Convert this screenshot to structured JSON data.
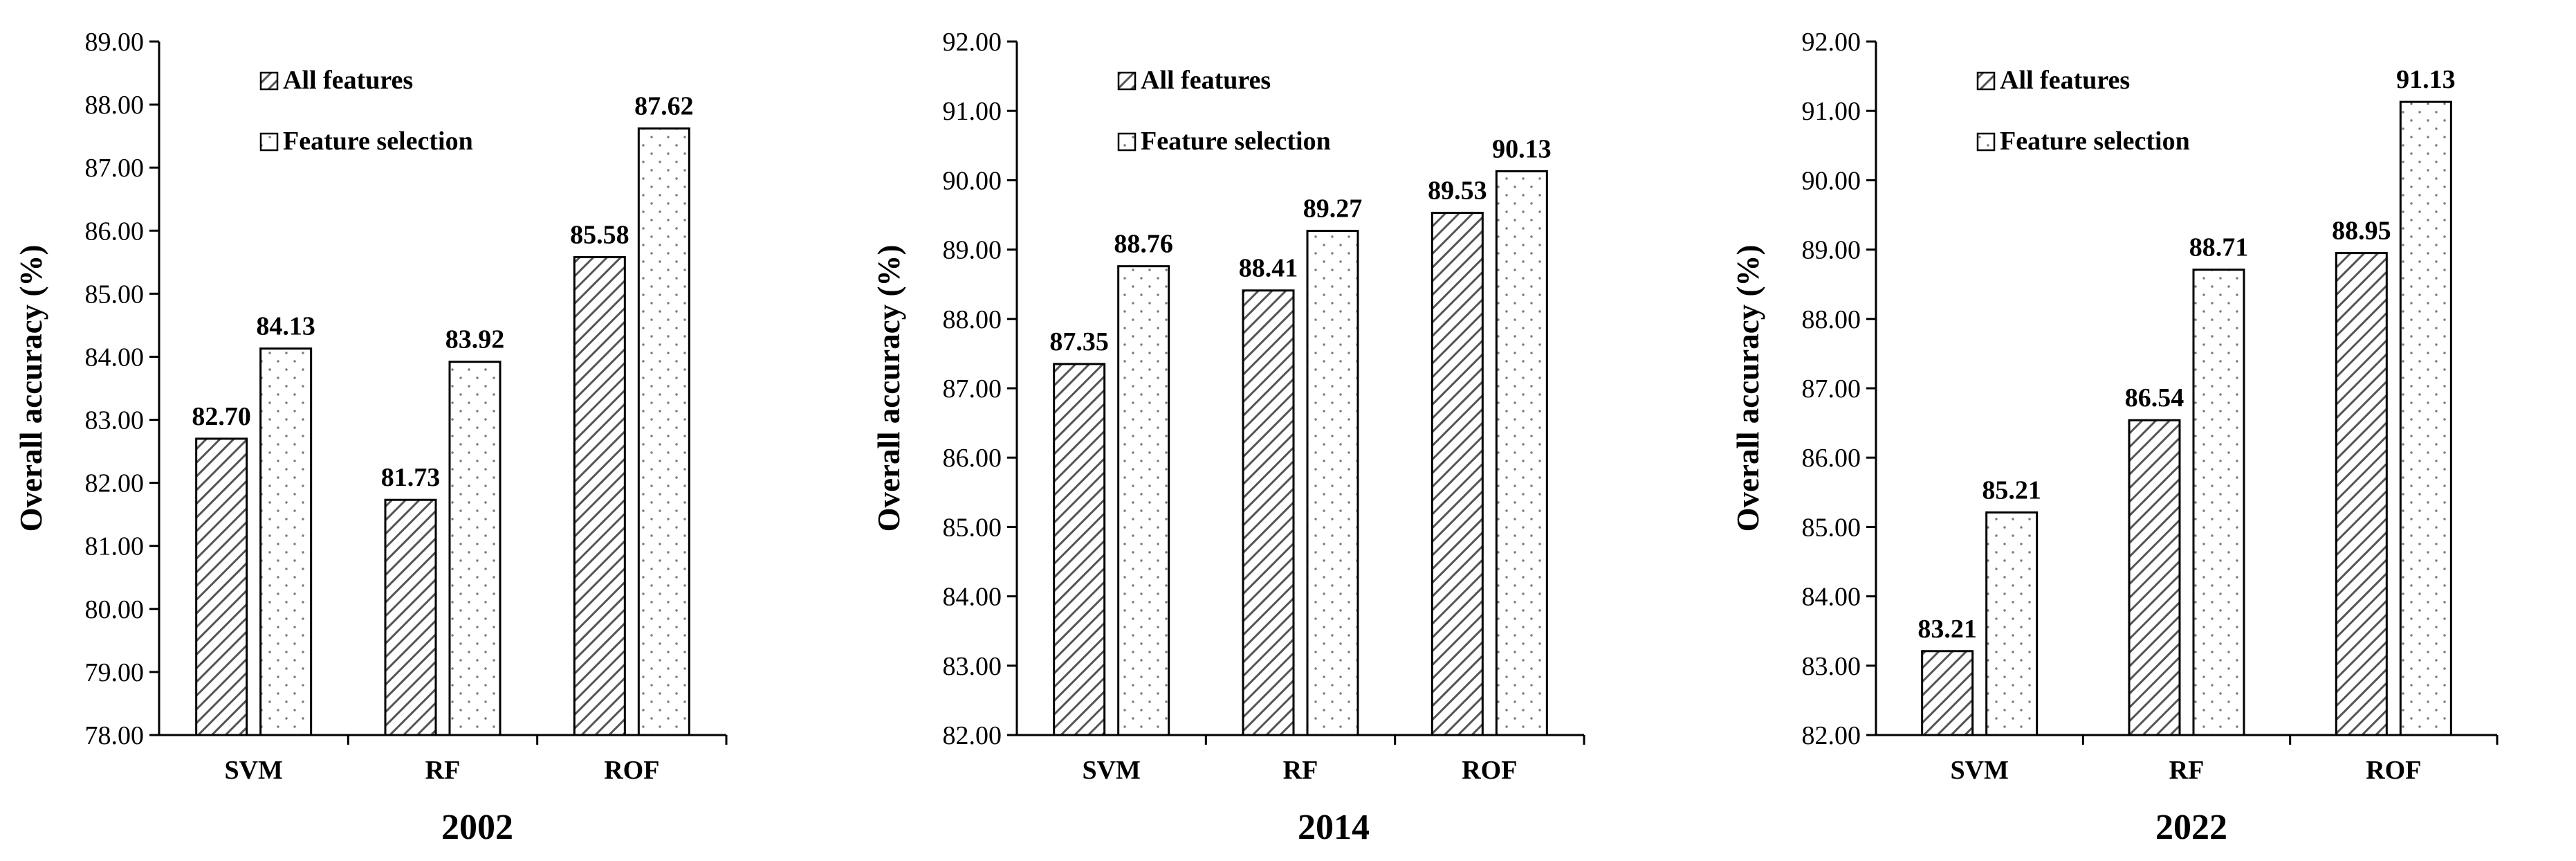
{
  "chart_data": [
    {
      "type": "bar",
      "title": "2002",
      "xlabel": "",
      "ylabel": "Overall accuracy (%)",
      "ylim": [
        78,
        89
      ],
      "ytick_step": 1,
      "yticks": [
        "78.00",
        "79.00",
        "80.00",
        "81.00",
        "82.00",
        "83.00",
        "84.00",
        "85.00",
        "86.00",
        "87.00",
        "88.00",
        "89.00"
      ],
      "categories": [
        "SVM",
        "RF",
        "ROF"
      ],
      "legend_position": "top-left",
      "series": [
        {
          "name": "All features",
          "pattern": "hatch",
          "values": [
            82.7,
            81.73,
            85.58
          ],
          "labels": [
            "82.70",
            "81.73",
            "85.58"
          ]
        },
        {
          "name": "Feature selection",
          "pattern": "dots",
          "values": [
            84.13,
            83.92,
            87.62
          ],
          "labels": [
            "84.13",
            "83.92",
            "87.62"
          ]
        }
      ]
    },
    {
      "type": "bar",
      "title": "2014",
      "xlabel": "",
      "ylabel": "Overall accuracy (%)",
      "ylim": [
        82,
        92
      ],
      "ytick_step": 1,
      "yticks": [
        "82.00",
        "83.00",
        "84.00",
        "85.00",
        "86.00",
        "87.00",
        "88.00",
        "89.00",
        "90.00",
        "91.00",
        "92.00"
      ],
      "categories": [
        "SVM",
        "RF",
        "ROF"
      ],
      "legend_position": "top-left",
      "series": [
        {
          "name": "All features",
          "pattern": "hatch",
          "values": [
            87.35,
            88.41,
            89.53
          ],
          "labels": [
            "87.35",
            "88.41",
            "89.53"
          ]
        },
        {
          "name": "Feature selection",
          "pattern": "dots",
          "values": [
            88.76,
            89.27,
            90.13
          ],
          "labels": [
            "88.76",
            "89.27",
            "90.13"
          ]
        }
      ]
    },
    {
      "type": "bar",
      "title": "2022",
      "xlabel": "",
      "ylabel": "Overall accuracy (%)",
      "ylim": [
        82,
        92
      ],
      "ytick_step": 1,
      "yticks": [
        "82.00",
        "83.00",
        "84.00",
        "85.00",
        "86.00",
        "87.00",
        "88.00",
        "89.00",
        "90.00",
        "91.00",
        "92.00"
      ],
      "categories": [
        "SVM",
        "RF",
        "ROF"
      ],
      "legend_position": "top-left",
      "series": [
        {
          "name": "All features",
          "pattern": "hatch",
          "values": [
            83.21,
            86.54,
            88.95
          ],
          "labels": [
            "83.21",
            "86.54",
            "88.95"
          ]
        },
        {
          "name": "Feature selection",
          "pattern": "dots",
          "values": [
            85.21,
            88.71,
            91.13
          ],
          "labels": [
            "85.21",
            "88.71",
            "91.13"
          ]
        }
      ]
    }
  ],
  "colors": {
    "axis": "#000000",
    "bar_stroke": "#000000",
    "hatch_fill": "#ffffff",
    "hatch_line": "#555555",
    "dot_fill": "#ffffff",
    "dot_color": "#7a7a7a"
  }
}
